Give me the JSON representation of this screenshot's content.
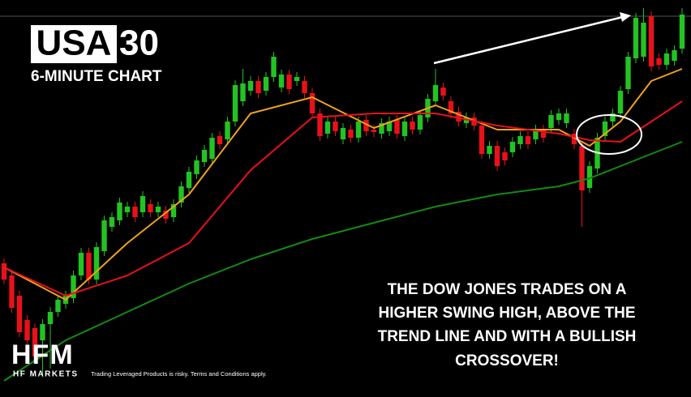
{
  "chart_data": {
    "type": "candlestick",
    "title_box": "USA",
    "title_suffix": "30",
    "subtitle": "6-MINUTE CHART",
    "annotation": [
      "THE DOW JONES TRADES ON A",
      "HIGHER SWING HIGH, ABOVE THE",
      "TREND LINE AND WITH A BULLISH",
      "CROSSOVER!"
    ],
    "up_color": "#22c322",
    "down_color": "#e8111a",
    "ylim": [
      0,
      485
    ],
    "xlim": [
      0,
      88
    ],
    "open": [
      160,
      145,
      120,
      90,
      80,
      65,
      85,
      100,
      110,
      117,
      145,
      173,
      140,
      175,
      205,
      213,
      223,
      230,
      223,
      233,
      223,
      225,
      217,
      235,
      253,
      270,
      285,
      289,
      317,
      313,
      335,
      360,
      373,
      385,
      373,
      390,
      377,
      393,
      385,
      385,
      370,
      345,
      320,
      335,
      313,
      325,
      315,
      337,
      325,
      320,
      323,
      337,
      317,
      335,
      325,
      340,
      360,
      377,
      360,
      347,
      333,
      340,
      330,
      295,
      305,
      297,
      297,
      307,
      317,
      313,
      325,
      327,
      337,
      333,
      320,
      305,
      253,
      277,
      317,
      335,
      345,
      375,
      413,
      415,
      465,
      413,
      405,
      410,
      425
    ],
    "high": [
      166,
      151,
      126,
      96,
      86,
      91,
      106,
      121,
      126,
      151,
      179,
      179,
      186,
      219,
      223,
      241,
      236,
      236,
      249,
      239,
      236,
      231,
      239,
      261,
      279,
      293,
      306,
      321,
      323,
      341,
      386,
      400,
      391,
      391,
      396,
      421,
      399,
      399,
      396,
      391,
      376,
      351,
      341,
      341,
      333,
      331,
      341,
      343,
      331,
      339,
      341,
      343,
      341,
      341,
      349,
      369,
      400,
      383,
      366,
      353,
      346,
      346,
      336,
      311,
      311,
      303,
      316,
      323,
      323,
      331,
      331,
      349,
      351,
      351,
      326,
      311,
      286,
      321,
      341,
      351,
      379,
      421,
      469,
      475,
      471,
      419,
      425,
      429,
      475
    ],
    "low": [
      134,
      99,
      69,
      59,
      39,
      20,
      30,
      94,
      104,
      111,
      139,
      134,
      134,
      169,
      199,
      207,
      217,
      211,
      217,
      217,
      217,
      209,
      211,
      229,
      247,
      264,
      279,
      283,
      301,
      307,
      329,
      354,
      367,
      364,
      367,
      384,
      371,
      369,
      379,
      364,
      339,
      311,
      314,
      317,
      307,
      309,
      309,
      317,
      316,
      314,
      317,
      314,
      311,
      319,
      319,
      334,
      354,
      361,
      339,
      329,
      327,
      324,
      289,
      289,
      274,
      281,
      291,
      301,
      301,
      307,
      309,
      321,
      331,
      327,
      301,
      205,
      247,
      271,
      311,
      329,
      339,
      369,
      407,
      409,
      397,
      399,
      399,
      404,
      419
    ],
    "close": [
      140,
      105,
      75,
      65,
      45,
      85,
      100,
      115,
      120,
      145,
      173,
      140,
      180,
      213,
      217,
      235,
      230,
      217,
      243,
      223,
      230,
      215,
      233,
      255,
      273,
      287,
      300,
      315,
      307,
      335,
      380,
      382,
      385,
      370,
      390,
      415,
      393,
      375,
      390,
      370,
      345,
      317,
      335,
      323,
      327,
      315,
      335,
      323,
      322,
      333,
      335,
      320,
      335,
      325,
      343,
      363,
      380,
      367,
      345,
      335,
      340,
      330,
      295,
      305,
      280,
      287,
      310,
      317,
      307,
      325,
      315,
      343,
      345,
      345,
      307,
      250,
      280,
      315,
      335,
      345,
      373,
      415,
      463,
      457,
      403,
      405,
      419,
      423,
      467
    ],
    "line_x": [
      0,
      8,
      16,
      24,
      32,
      40,
      48,
      56,
      64,
      72,
      76,
      80,
      84,
      88
    ],
    "series": [
      {
        "color": "#f0a020",
        "values": [
          155,
          115,
          185,
          245,
          345,
          365,
          327,
          355,
          325,
          325,
          305,
          335,
          385,
          400
        ]
      },
      {
        "color": "#e8111a",
        "values": [
          155,
          120,
          145,
          185,
          275,
          340,
          345,
          345,
          330,
          320,
          312,
          310,
          335,
          360
        ]
      },
      {
        "color": "#138a13",
        "values": [
          15,
          65,
          100,
          135,
          165,
          190,
          210,
          230,
          245,
          255,
          265,
          280,
          295,
          310
        ]
      }
    ]
  },
  "footer": {
    "logo": "HFM",
    "brand": "HF MARKETS",
    "disclaimer": "Trading Leveraged Products is risky. Terms and Conditions apply."
  }
}
